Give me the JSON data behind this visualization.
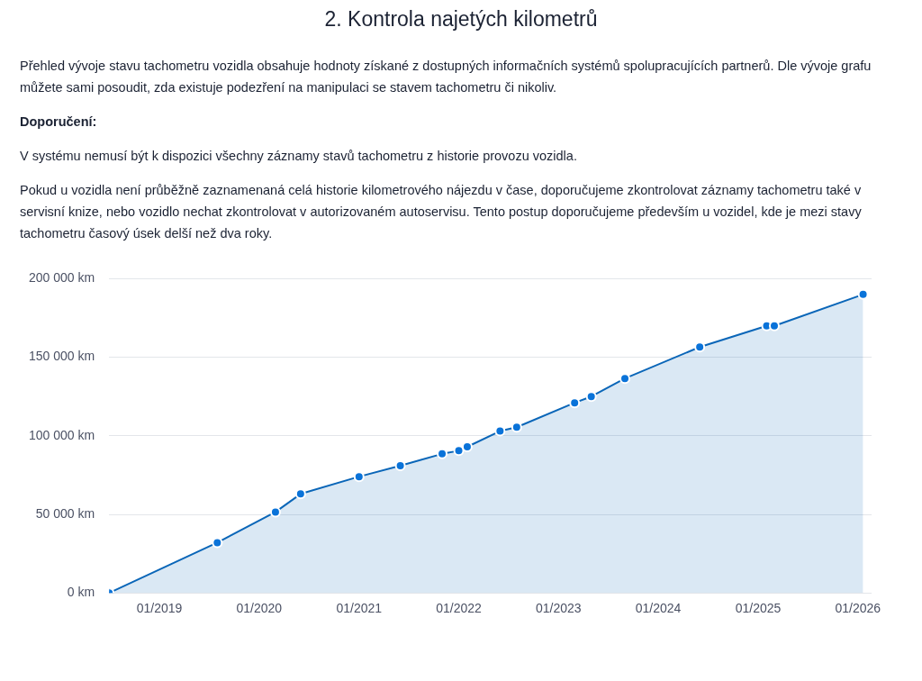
{
  "chart_data": {
    "type": "area",
    "title": "2. Kontrola najetých kilometrů",
    "subtitle": "Přehled vývoje stavu tachometru vozidla obsahuje hodnoty získané z dostupných informačních systémů spolupracujících partnerů. Dle vývoje grafu můžete sami posoudit, zda existuje podezření na manipulaci se stavem tachometru či nikoliv.",
    "annotations": [
      "Doporučení:",
      "V systému nemusí být k dispozici všechny záznamy stavů tachometru z historie provozu vozidla.",
      "Pokud u vozidla není průběžně zaznamenaná celá historie kilometrového nájezdu v čase, doporučujeme zkontrolovat záznamy tachometru také v servisní knize, nebo vozidlo nechat zkontrolovat v autorizovaném autoservisu. Tento postup doporučujeme především u vozidel, kde je mezi stavy tachometru časový úsek delší než dva roky."
    ],
    "x": [
      "2018-07",
      "2019-08",
      "2020-03",
      "2020-06",
      "2021-01",
      "2021-06",
      "2021-11",
      "2022-01",
      "2022-02",
      "2022-06",
      "2022-08",
      "2023-03",
      "2023-05",
      "2023-09",
      "2024-06",
      "2025-02",
      "2025-03",
      "2026-01-20"
    ],
    "series": [
      {
        "color": "#0a66b8",
        "values": [
          0,
          32000,
          51500,
          63000,
          74000,
          81000,
          88500,
          90500,
          93000,
          103000,
          105500,
          121000,
          125000,
          136500,
          156500,
          170000,
          170000,
          190000
        ]
      }
    ],
    "xlim": [
      "2018-07",
      "2026-02-20"
    ],
    "xticks": [
      {
        "value": "2019-01",
        "label": "01/2019"
      },
      {
        "value": "2020-01",
        "label": "01/2020"
      },
      {
        "value": "2021-01",
        "label": "01/2021"
      },
      {
        "value": "2022-01",
        "label": "01/2022"
      },
      {
        "value": "2023-01",
        "label": "01/2023"
      },
      {
        "value": "2024-01",
        "label": "01/2024"
      },
      {
        "value": "2025-01",
        "label": "01/2025"
      },
      {
        "value": "2026-01",
        "label": "01/2026"
      }
    ],
    "ylim": [
      0,
      200000
    ],
    "yticks": [
      {
        "value": 0,
        "label": "0 km"
      },
      {
        "value": 50000,
        "label": "50 000 km"
      },
      {
        "value": 100000,
        "label": "100 000 km"
      },
      {
        "value": 150000,
        "label": "150 000 km"
      },
      {
        "value": 200000,
        "label": "200 000 km"
      }
    ],
    "grid": "y",
    "marker": "circle",
    "legend": false
  }
}
